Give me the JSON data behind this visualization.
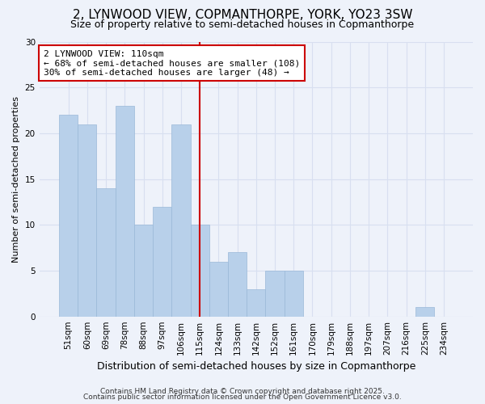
{
  "title": "2, LYNWOOD VIEW, COPMANTHORPE, YORK, YO23 3SW",
  "subtitle": "Size of property relative to semi-detached houses in Copmanthorpe",
  "xlabel": "Distribution of semi-detached houses by size in Copmanthorpe",
  "ylabel": "Number of semi-detached properties",
  "categories": [
    "51sqm",
    "60sqm",
    "69sqm",
    "78sqm",
    "88sqm",
    "97sqm",
    "106sqm",
    "115sqm",
    "124sqm",
    "133sqm",
    "142sqm",
    "152sqm",
    "161sqm",
    "170sqm",
    "179sqm",
    "188sqm",
    "197sqm",
    "207sqm",
    "216sqm",
    "225sqm",
    "234sqm"
  ],
  "values": [
    22,
    21,
    14,
    23,
    10,
    12,
    21,
    10,
    6,
    7,
    3,
    5,
    5,
    0,
    0,
    0,
    0,
    0,
    0,
    1,
    0
  ],
  "bar_color": "#b8d0ea",
  "bar_edge_color": "#9ab8d8",
  "vline_x_index": 7,
  "vline_color": "#cc0000",
  "annotation_title": "2 LYNWOOD VIEW: 110sqm",
  "annotation_line1": "← 68% of semi-detached houses are smaller (108)",
  "annotation_line2": "30% of semi-detached houses are larger (48) →",
  "annotation_box_color": "#ffffff",
  "annotation_box_edge": "#cc0000",
  "ylim": [
    0,
    30
  ],
  "yticks": [
    0,
    5,
    10,
    15,
    20,
    25,
    30
  ],
  "footnote1": "Contains HM Land Registry data © Crown copyright and database right 2025.",
  "footnote2": "Contains public sector information licensed under the Open Government Licence v3.0.",
  "background_color": "#eef2fa",
  "grid_color": "#d8dff0",
  "title_fontsize": 11,
  "subtitle_fontsize": 9,
  "xlabel_fontsize": 9,
  "ylabel_fontsize": 8,
  "tick_fontsize": 7.5,
  "annotation_fontsize": 8,
  "footnote_fontsize": 6.5
}
